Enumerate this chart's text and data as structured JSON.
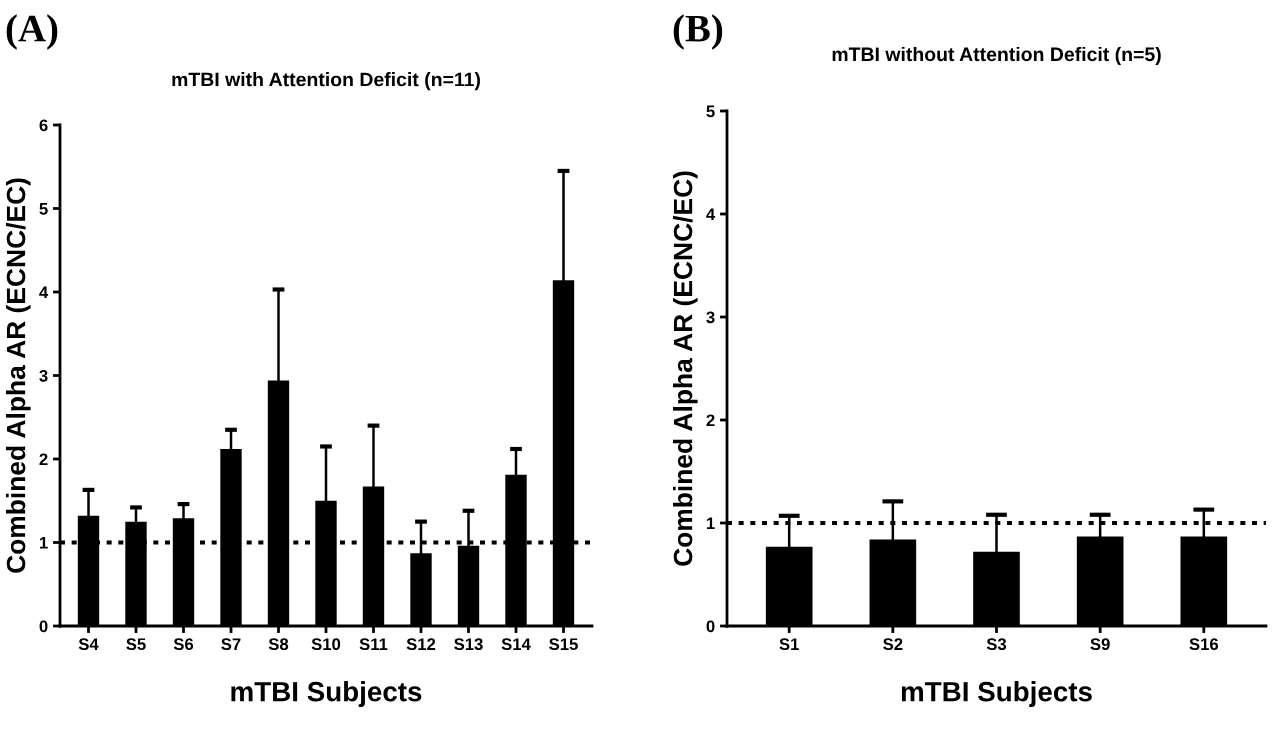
{
  "chart_data": [
    {
      "type": "bar",
      "title": "mTBI with Attention Deficit (n=11)",
      "xlabel": "mTBI Subjects",
      "ylabel": "Combined Alpha AR (ECNC/EC)",
      "categories": [
        "S4",
        "S5",
        "S6",
        "S7",
        "S8",
        "S10",
        "S11",
        "S12",
        "S13",
        "S14",
        "S15"
      ],
      "values": [
        1.32,
        1.25,
        1.29,
        2.12,
        2.94,
        1.5,
        1.67,
        0.87,
        0.96,
        1.81,
        4.14
      ],
      "errors": [
        0.31,
        0.17,
        0.17,
        0.23,
        1.09,
        0.65,
        0.73,
        0.38,
        0.42,
        0.31,
        1.31
      ],
      "color": "#000000",
      "ylim": [
        0,
        6
      ],
      "yticks": [
        0,
        1,
        2,
        3,
        4,
        5,
        6
      ],
      "grid": false,
      "ref_lines": [
        {
          "axis": "y",
          "value": 1,
          "line_style": "dotted",
          "color": "#000000"
        }
      ],
      "annotations": [
        "(A)"
      ]
    },
    {
      "type": "bar",
      "title": "mTBI without Attention Deficit (n=5)",
      "xlabel": "mTBI Subjects",
      "ylabel": "Combined Alpha AR (ECNC/EC)",
      "categories": [
        "S1",
        "S2",
        "S3",
        "S9",
        "S16"
      ],
      "values": [
        0.77,
        0.84,
        0.72,
        0.87,
        0.87
      ],
      "errors": [
        0.3,
        0.37,
        0.36,
        0.21,
        0.26
      ],
      "color": "#000000",
      "ylim": [
        0,
        5
      ],
      "yticks": [
        0,
        1,
        2,
        3,
        4,
        5
      ],
      "grid": false,
      "ref_lines": [
        {
          "axis": "y",
          "value": 1,
          "line_style": "dotted",
          "color": "#000000"
        }
      ],
      "annotations": [
        "(B)"
      ]
    }
  ]
}
